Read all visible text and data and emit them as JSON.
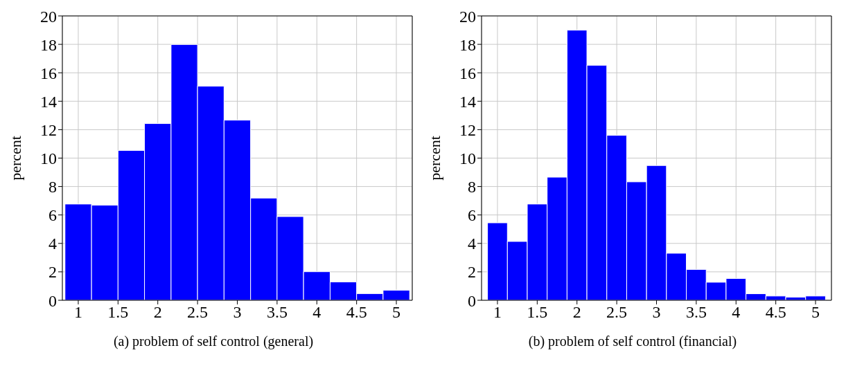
{
  "chart_data": [
    {
      "type": "histogram",
      "title": "(a) problem of self control (general)",
      "ylabel": "percent",
      "color": "#0000ff",
      "bins": [
        0.833,
        1.167,
        1.5,
        1.833,
        2.167,
        2.5,
        2.833,
        3.167,
        3.5,
        3.833,
        4.167,
        4.5,
        4.833,
        5.167
      ],
      "values": [
        6.77,
        6.69,
        10.54,
        12.43,
        17.99,
        15.06,
        12.67,
        7.19,
        5.89,
        2.01,
        1.29,
        0.47,
        0.71
      ],
      "xlim": [
        0.8,
        5.2
      ],
      "xticks": [
        1,
        1.5,
        2,
        2.5,
        3,
        3.5,
        4,
        4.5,
        5
      ],
      "ylim": [
        0,
        20
      ],
      "yticks": [
        0,
        2,
        4,
        6,
        8,
        10,
        12,
        14,
        16,
        18,
        20
      ],
      "grid": true
    },
    {
      "type": "histogram",
      "title": "(b) problem of self control (financial)",
      "ylabel": "percent",
      "color": "#0000ff",
      "bins": [
        0.875,
        1.125,
        1.375,
        1.625,
        1.875,
        2.125,
        2.375,
        2.625,
        2.875,
        3.125,
        3.375,
        3.625,
        3.875,
        4.125,
        4.375,
        4.625,
        4.875,
        5.125
      ],
      "values": [
        5.45,
        4.14,
        6.77,
        8.66,
        19.0,
        16.53,
        11.6,
        8.33,
        9.48,
        3.31,
        2.17,
        1.27,
        1.53,
        0.46,
        0.3,
        0.22,
        0.3
      ],
      "xlim": [
        0.8,
        5.2
      ],
      "xticks": [
        1,
        1.5,
        2,
        2.5,
        3,
        3.5,
        4,
        4.5,
        5
      ],
      "ylim": [
        0,
        20
      ],
      "yticks": [
        0,
        2,
        4,
        6,
        8,
        10,
        12,
        14,
        16,
        18,
        20
      ],
      "grid": true
    }
  ]
}
